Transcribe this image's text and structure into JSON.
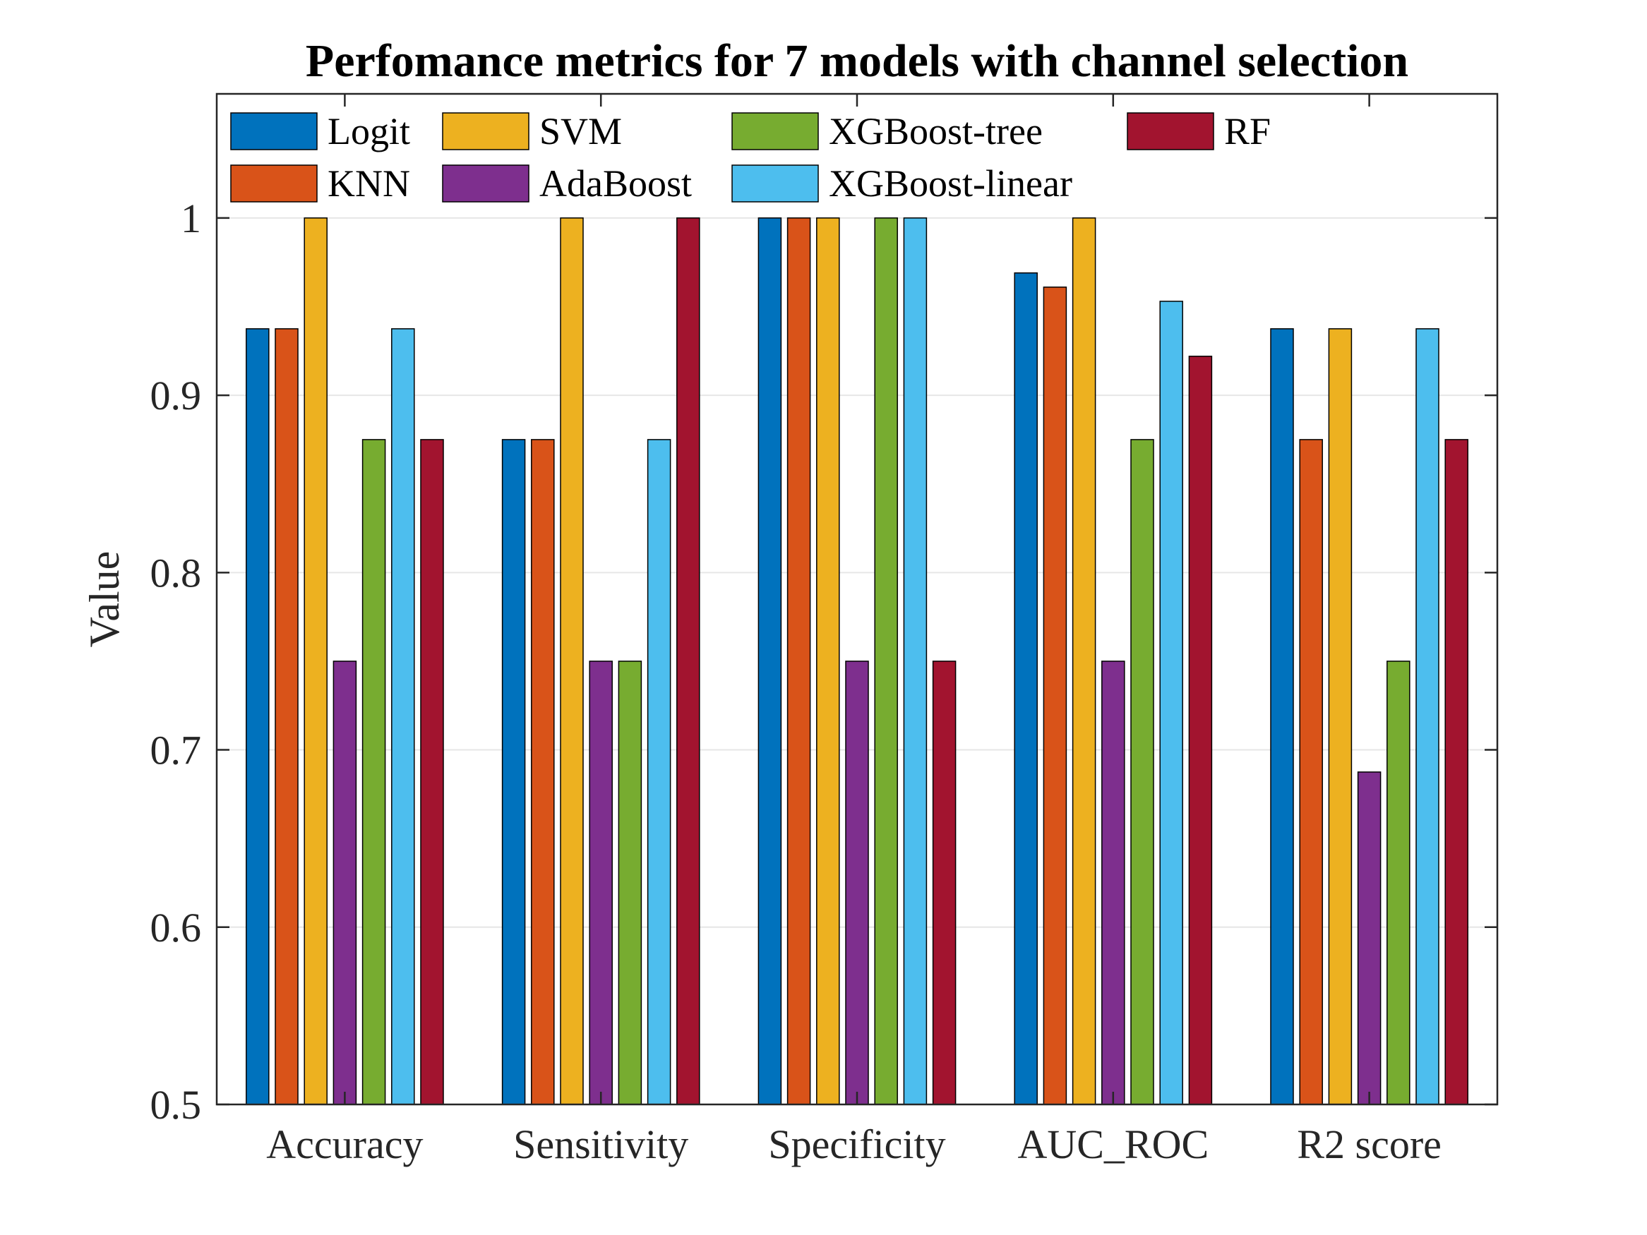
{
  "chart_data": {
    "type": "bar",
    "title": "Perfomance metrics for 7 models with channel selection",
    "xlabel": "",
    "ylabel": "Value",
    "ylim": [
      0.5,
      1.07
    ],
    "yticks": [
      "0.5",
      "0.6",
      "0.7",
      "0.8",
      "0.9",
      "1"
    ],
    "grid": true,
    "legend_position": "top, inside plot, 4 columns",
    "categories": [
      "Accuracy",
      "Sensitivity",
      "Specificity",
      "AUC_ROC",
      "R2 score"
    ],
    "series": [
      {
        "name": "Logit",
        "color": "#0072BD",
        "values": [
          0.9375,
          0.875,
          1.0,
          0.969,
          0.9375
        ]
      },
      {
        "name": "KNN",
        "color": "#D95319",
        "values": [
          0.9375,
          0.875,
          1.0,
          0.961,
          0.875
        ]
      },
      {
        "name": "SVM",
        "color": "#EDB120",
        "values": [
          1.0,
          1.0,
          1.0,
          1.0,
          0.9375
        ]
      },
      {
        "name": "AdaBoost",
        "color": "#7E2F8E",
        "values": [
          0.75,
          0.75,
          0.75,
          0.75,
          0.6875
        ]
      },
      {
        "name": "XGBoost-tree",
        "color": "#77AC30",
        "values": [
          0.875,
          0.75,
          1.0,
          0.875,
          0.75
        ]
      },
      {
        "name": "XGBoost-linear",
        "color": "#4DBEEE",
        "values": [
          0.9375,
          0.875,
          1.0,
          0.953,
          0.9375
        ]
      },
      {
        "name": "RF",
        "color": "#A2142F",
        "values": [
          0.875,
          1.0,
          0.75,
          0.922,
          0.875
        ]
      }
    ]
  }
}
